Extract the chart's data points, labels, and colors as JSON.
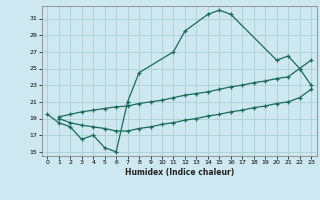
{
  "xlabel": "Humidex (Indice chaleur)",
  "bg_color": "#cde8f0",
  "grid_color": "#a8cccc",
  "line_color": "#1a6b5a",
  "xlim": [
    -0.5,
    23.5
  ],
  "ylim": [
    14.5,
    32.5
  ],
  "yticks": [
    15,
    17,
    19,
    21,
    23,
    25,
    27,
    29,
    31
  ],
  "xticks": [
    0,
    1,
    2,
    3,
    4,
    5,
    6,
    7,
    8,
    9,
    10,
    11,
    12,
    13,
    14,
    15,
    16,
    17,
    18,
    19,
    20,
    21,
    22,
    23
  ],
  "curve1_x": [
    0,
    1,
    2,
    3,
    4,
    5,
    6,
    7,
    8,
    11,
    12,
    14,
    15,
    16,
    20,
    21,
    22,
    23
  ],
  "curve1_y": [
    19.5,
    18.5,
    18.0,
    16.5,
    17.0,
    15.5,
    15.0,
    21.0,
    24.5,
    27.0,
    29.5,
    31.5,
    32.0,
    31.5,
    26.0,
    26.5,
    25.0,
    23.0
  ],
  "curve2_x": [
    1,
    2,
    3,
    4,
    5,
    6,
    7,
    8,
    9,
    10,
    11,
    12,
    13,
    14,
    15,
    16,
    17,
    18,
    19,
    20,
    21,
    22,
    23
  ],
  "curve2_y": [
    19.0,
    18.5,
    18.2,
    18.0,
    17.8,
    17.5,
    17.5,
    17.8,
    18.0,
    18.3,
    18.5,
    18.8,
    19.0,
    19.3,
    19.5,
    19.8,
    20.0,
    20.3,
    20.5,
    20.8,
    21.0,
    21.5,
    22.5
  ],
  "curve3_x": [
    1,
    2,
    3,
    4,
    5,
    6,
    7,
    8,
    9,
    10,
    11,
    12,
    13,
    14,
    15,
    16,
    17,
    18,
    19,
    20,
    21,
    22,
    23
  ],
  "curve3_y": [
    19.2,
    19.5,
    19.8,
    20.0,
    20.2,
    20.4,
    20.5,
    20.8,
    21.0,
    21.2,
    21.5,
    21.8,
    22.0,
    22.2,
    22.5,
    22.8,
    23.0,
    23.3,
    23.5,
    23.8,
    24.0,
    25.0,
    26.0
  ]
}
